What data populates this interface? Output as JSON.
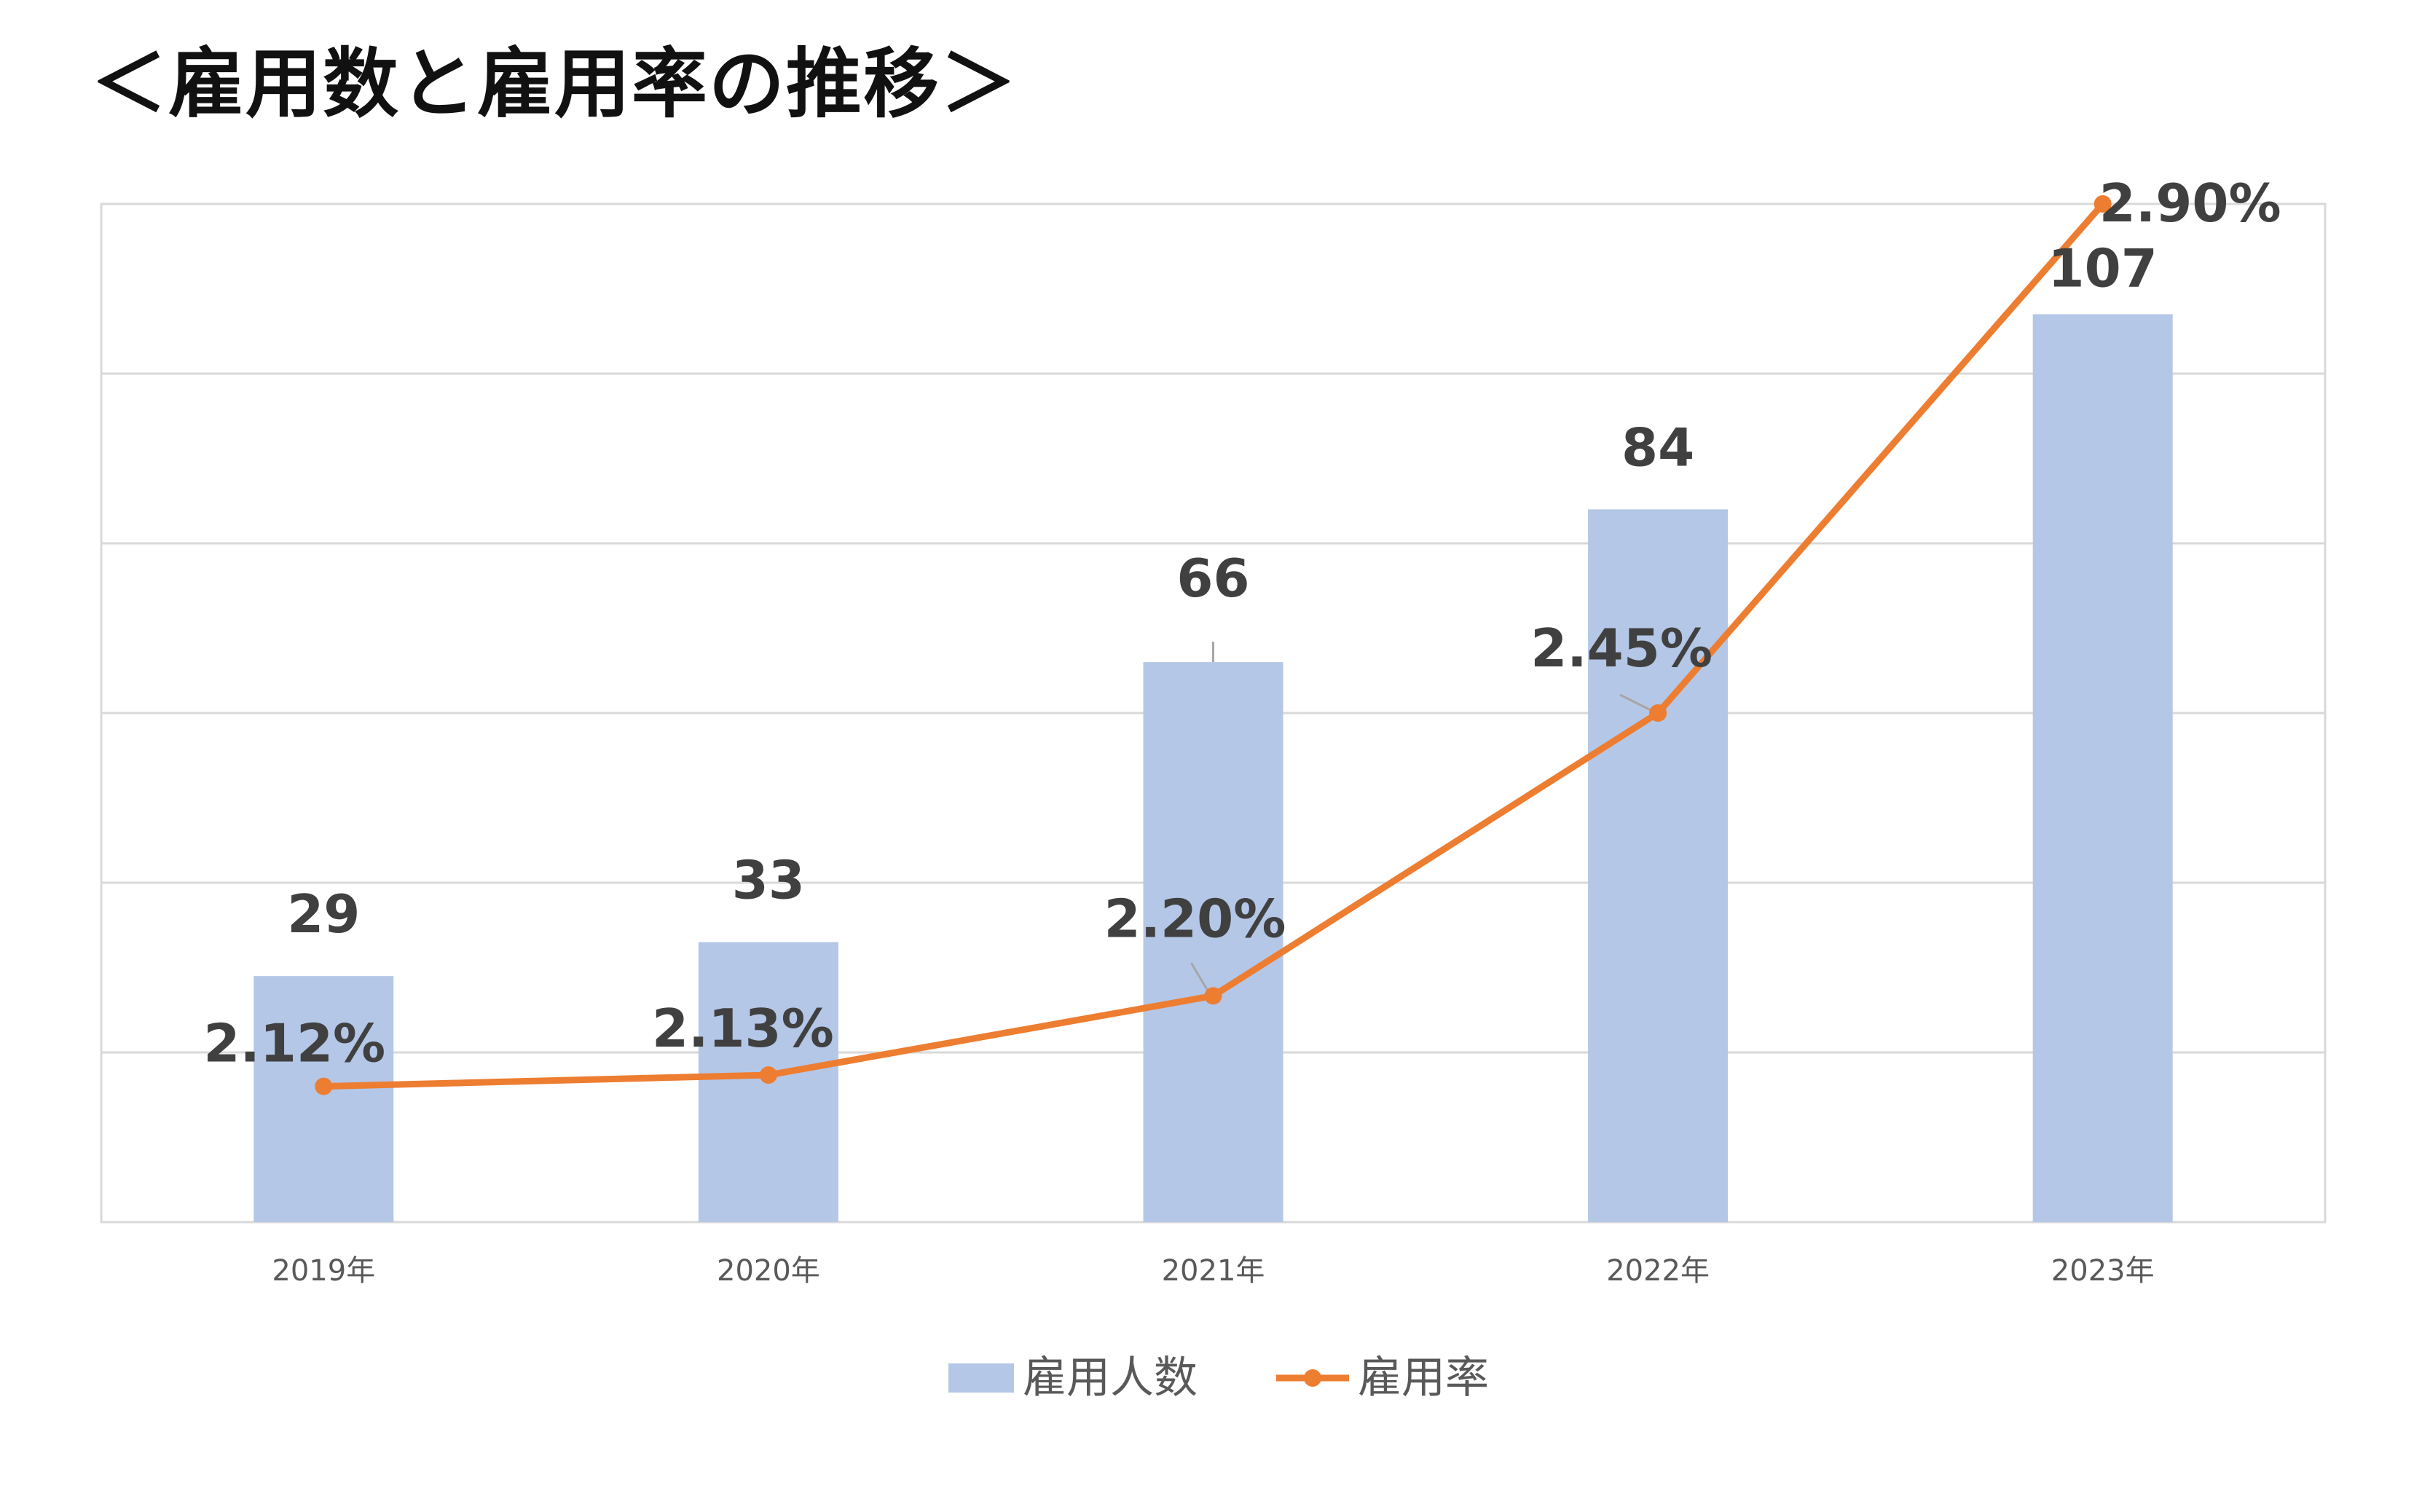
{
  "page_title": "＜雇用数と雇用率の推移＞",
  "colors": {
    "bar": "#b4c7e7",
    "line": "#ed7d31",
    "grid": "#d9d9d9",
    "label": "#404040",
    "tick": "#595959"
  },
  "chart_data": {
    "type": "bar",
    "categories": [
      "2019年",
      "2020年",
      "2021年",
      "2022年",
      "2023年"
    ],
    "series": [
      {
        "name": "雇用人数",
        "type": "bar",
        "axis": "left",
        "values": [
          29,
          33,
          66,
          84,
          107
        ],
        "labels": [
          "29",
          "33",
          "66",
          "84",
          "107"
        ]
      },
      {
        "name": "雇用率",
        "type": "line",
        "axis": "right",
        "values": [
          2.12,
          2.13,
          2.2,
          2.45,
          2.9
        ],
        "labels": [
          "2.12%",
          "2.13%",
          "2.20%",
          "2.45%",
          "2.90%"
        ]
      }
    ],
    "ylim_left": [
      0,
      120
    ],
    "ylim_right": [
      2.0,
      2.9
    ],
    "grid": true,
    "axis_tick_labels_visible": false,
    "legend_position": "bottom"
  }
}
